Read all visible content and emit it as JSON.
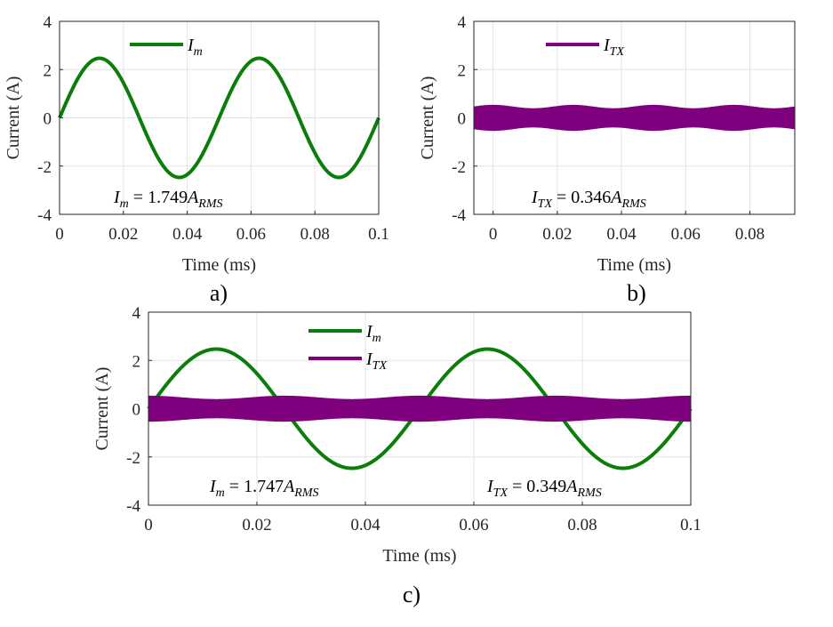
{
  "colors": {
    "im": "#0a7d0a",
    "itx": "#7f007f"
  },
  "panels": [
    {
      "panel_label": "a)",
      "legend": [
        {
          "base": "I",
          "sub": "m",
          "color": "#0a7d0a"
        }
      ],
      "annotations": [
        {
          "lhs_base": "I",
          "lhs_sub": "m",
          "value": " = 1.749",
          "unit_base": "A",
          "unit_sub": "RMS"
        }
      ]
    },
    {
      "panel_label": "b)",
      "legend": [
        {
          "base": "I",
          "sub": "TX",
          "color": "#7f007f"
        }
      ],
      "annotations": [
        {
          "lhs_base": "I",
          "lhs_sub": "TX",
          "value": " = 0.346",
          "unit_base": "A",
          "unit_sub": "RMS"
        }
      ]
    },
    {
      "panel_label": "c)",
      "legend": [
        {
          "base": "I",
          "sub": "m",
          "color": "#0a7d0a"
        },
        {
          "base": "I",
          "sub": "TX",
          "color": "#7f007f"
        }
      ],
      "annotations": [
        {
          "lhs_base": "I",
          "lhs_sub": "m",
          "value": " = 1.747",
          "unit_base": "A",
          "unit_sub": "RMS"
        },
        {
          "lhs_base": "I",
          "lhs_sub": "TX",
          "value": " = 0.349",
          "unit_base": "A",
          "unit_sub": "RMS"
        }
      ]
    }
  ],
  "chart_data": [
    {
      "type": "line",
      "xlabel": "Time (ms)",
      "ylabel": "Current (A)",
      "xlim": [
        0,
        0.1
      ],
      "ylim": [
        -4,
        4
      ],
      "xticks": [
        "0",
        "0.02",
        "0.04",
        "0.06",
        "0.08",
        "0.1"
      ],
      "yticks": [
        "-4",
        "-2",
        "0",
        "2",
        "4"
      ],
      "grid": true,
      "legend_position": "top",
      "series": [
        {
          "key": "Im",
          "kind": "sine",
          "amplitude": 2.47,
          "period": 0.05,
          "color": "#0a7d0a"
        }
      ]
    },
    {
      "type": "line",
      "xlabel": "Time (ms)",
      "ylabel": "Current (A)",
      "xlim": [
        -0.006,
        0.094
      ],
      "ylim": [
        -4,
        4
      ],
      "xticks": [
        "0",
        "0.02",
        "0.04",
        "0.06",
        "0.08"
      ],
      "yticks": [
        "-4",
        "-2",
        "0",
        "2",
        "4"
      ],
      "grid": true,
      "legend_position": "top",
      "series": [
        {
          "key": "ITX",
          "kind": "hf-band",
          "envelope_min": 0.38,
          "envelope_max": 0.52,
          "envelope_period": 0.025,
          "color": "#7f007f"
        }
      ]
    },
    {
      "type": "line",
      "xlabel": "Time (ms)",
      "ylabel": "Current (A)",
      "xlim": [
        0,
        0.1
      ],
      "ylim": [
        -4,
        4
      ],
      "xticks": [
        "0",
        "0.02",
        "0.04",
        "0.06",
        "0.08",
        "0.1"
      ],
      "yticks": [
        "-4",
        "-2",
        "0",
        "2",
        "4"
      ],
      "grid": true,
      "legend_position": "top-center",
      "series": [
        {
          "key": "Im",
          "kind": "sine",
          "amplitude": 2.47,
          "period": 0.05,
          "color": "#0a7d0a"
        },
        {
          "key": "ITX",
          "kind": "hf-band",
          "envelope_min": 0.38,
          "envelope_max": 0.52,
          "envelope_period": 0.025,
          "color": "#7f007f"
        }
      ]
    }
  ]
}
